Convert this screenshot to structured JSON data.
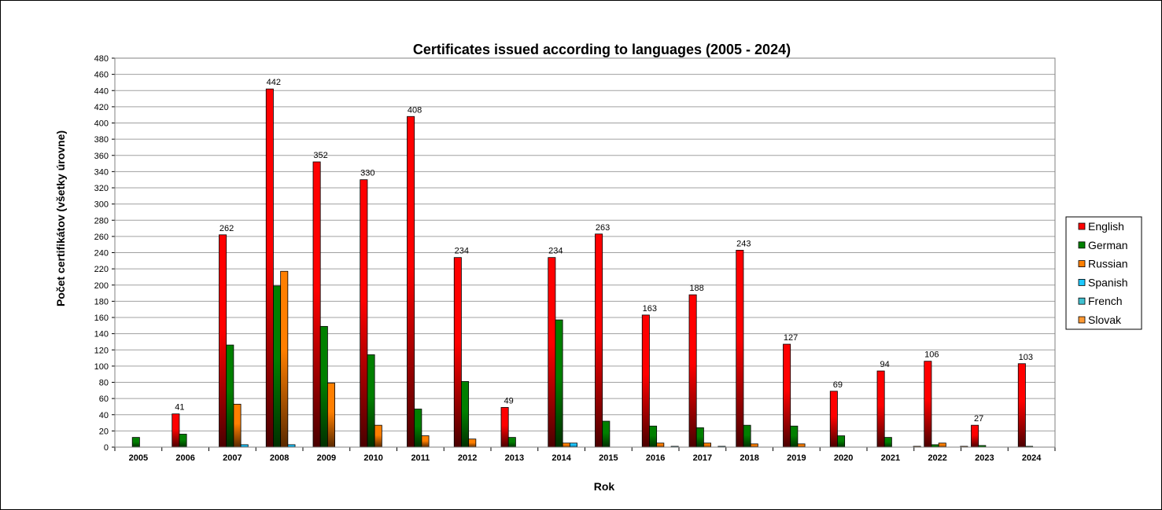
{
  "chart_data": {
    "type": "bar",
    "title": "Certificates issued according to languages (2005 - 2024)",
    "xlabel": "Rok",
    "ylabel": "Počet certifikátov (všetky úrovne)",
    "ylim": [
      0,
      480
    ],
    "ytick_step": 20,
    "grid": true,
    "legend_position": "right",
    "categories": [
      "2005",
      "2006",
      "2007",
      "2008",
      "2009",
      "2010",
      "2011",
      "2012",
      "2013",
      "2014",
      "2015",
      "2016",
      "2017",
      "2018",
      "2019",
      "2020",
      "2021",
      "2022",
      "2023",
      "2024"
    ],
    "series": [
      {
        "name": "English",
        "color": "#ff0000",
        "dark": "#4a0000",
        "values": [
          0,
          41,
          262,
          442,
          352,
          330,
          408,
          234,
          49,
          234,
          263,
          163,
          188,
          243,
          127,
          69,
          94,
          106,
          27,
          103
        ]
      },
      {
        "name": "German",
        "color": "#008000",
        "dark": "#003000",
        "values": [
          12,
          16,
          126,
          199,
          149,
          114,
          47,
          81,
          12,
          157,
          32,
          26,
          24,
          27,
          26,
          14,
          12,
          3,
          2,
          1
        ]
      },
      {
        "name": "Russian",
        "color": "#ff7f00",
        "dark": "#5a2a00",
        "values": [
          0,
          0,
          53,
          217,
          79,
          27,
          14,
          10,
          0,
          5,
          0,
          5,
          5,
          4,
          4,
          0,
          0,
          5,
          0,
          0
        ]
      },
      {
        "name": "Spanish",
        "color": "#1ec8ff",
        "dark": "#004a66",
        "values": [
          0,
          0,
          3,
          3,
          0,
          0,
          0,
          0,
          0,
          5,
          0,
          0,
          0,
          0,
          0,
          0,
          0,
          0,
          0,
          0
        ]
      },
      {
        "name": "French",
        "color": "#40c0d0",
        "dark": "#1a6070",
        "values": [
          0,
          0,
          0,
          0,
          0,
          0,
          0,
          0,
          0,
          0,
          0,
          1,
          1,
          0,
          0,
          0,
          0,
          0,
          0,
          0
        ]
      },
      {
        "name": "Slovak",
        "color": "#ff9933",
        "dark": "#a05010",
        "values": [
          0,
          0,
          0,
          0,
          0,
          0,
          0,
          0,
          0,
          0,
          0,
          0,
          0,
          0,
          0,
          0,
          1,
          1,
          0,
          0
        ]
      }
    ],
    "data_labels_series": "English",
    "data_labels": [
      null,
      "41",
      "262",
      "442",
      "352",
      "330",
      "408",
      "234",
      "49",
      "234",
      "263",
      "163",
      "188",
      "243",
      "127",
      "69",
      "94",
      "106",
      "27",
      "103"
    ]
  }
}
